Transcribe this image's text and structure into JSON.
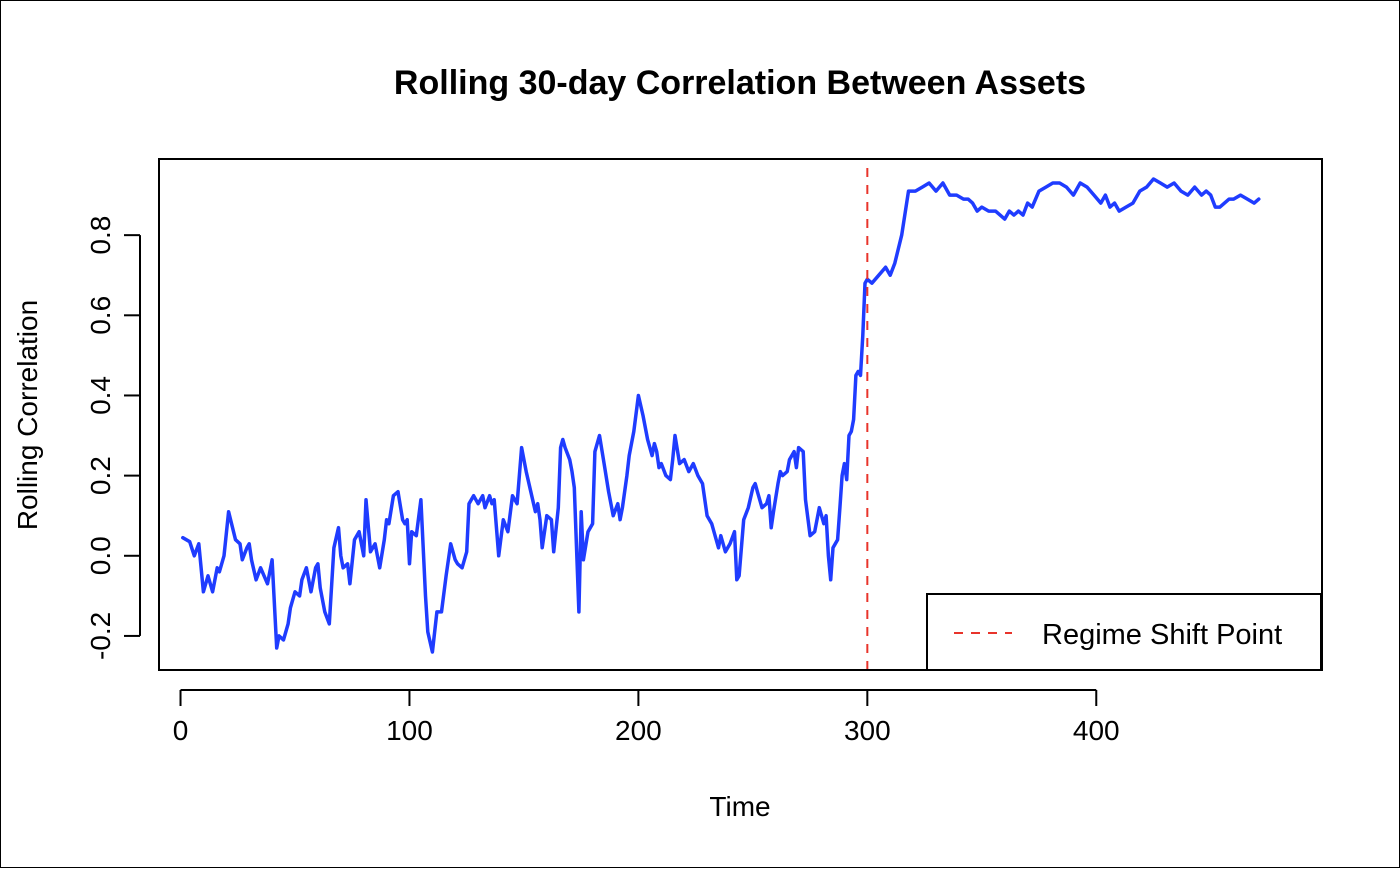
{
  "chart_data": {
    "type": "line",
    "title": "Rolling 30-day Correlation Between Assets",
    "xlabel": "Time",
    "ylabel": "Rolling Correlation",
    "xlim": [
      -9.4,
      498.6
    ],
    "ylim": [
      -0.285,
      0.99
    ],
    "x_ticks": [
      0,
      100,
      200,
      300,
      400
    ],
    "y_ticks": [
      -0.2,
      0.0,
      0.2,
      0.4,
      0.6,
      0.8
    ],
    "x_tick_labels": [
      "0",
      "100",
      "200",
      "300",
      "400"
    ],
    "y_tick_labels": [
      "-0.2",
      "0.0",
      "0.2",
      "0.4",
      "0.6",
      "0.8"
    ],
    "grid": false,
    "legend_position": "bottom-right",
    "colors": {
      "series": "#1f3cff",
      "regime_line": "#e8342b"
    },
    "series": [
      {
        "name": "Rolling Correlation",
        "x": [
          1,
          4,
          6,
          8,
          10,
          12,
          14,
          15,
          16,
          17,
          19,
          21,
          24,
          26,
          27,
          29,
          30,
          31,
          33,
          35,
          38,
          40,
          42,
          43,
          45,
          47,
          48,
          50,
          52,
          53,
          55,
          57,
          59,
          60,
          61,
          63,
          65,
          67,
          69,
          70,
          71,
          73,
          74,
          76,
          78,
          80,
          81,
          83,
          85,
          87,
          89,
          90,
          91,
          93,
          95,
          97,
          98,
          99,
          100,
          101,
          103,
          105,
          107,
          108,
          110,
          112,
          114,
          116,
          118,
          120,
          121,
          123,
          125,
          126,
          128,
          130,
          132,
          133,
          135,
          136,
          137,
          139,
          141,
          143,
          145,
          147,
          149,
          151,
          153,
          155,
          156,
          157,
          158,
          160,
          162,
          163,
          165,
          166,
          167,
          168,
          170,
          171,
          172,
          174,
          175,
          176,
          178,
          180,
          181,
          183,
          185,
          187,
          189,
          191,
          192,
          193,
          195,
          196,
          198,
          200,
          202,
          204,
          206,
          207,
          208,
          209,
          210,
          212,
          214,
          215,
          216,
          218,
          220,
          222,
          224,
          226,
          228,
          230,
          232,
          234,
          235,
          236,
          238,
          240,
          242,
          243,
          244,
          246,
          248,
          250,
          251,
          252,
          254,
          256,
          257,
          258,
          259,
          261,
          262,
          263,
          265,
          266,
          268,
          269,
          270,
          272,
          273,
          275,
          277,
          279,
          281,
          282,
          283,
          284,
          285,
          287,
          288,
          289,
          290,
          291,
          292,
          293,
          294,
          295,
          296,
          297,
          298,
          299,
          300,
          302,
          305,
          308,
          310,
          312,
          315,
          318,
          321,
          324,
          327,
          330,
          333,
          336,
          339,
          342,
          344,
          346,
          348,
          350,
          353,
          356,
          358,
          360,
          362,
          364,
          366,
          368,
          370,
          372,
          375,
          378,
          381,
          384,
          387,
          390,
          393,
          396,
          399,
          402,
          404,
          406,
          408,
          410,
          413,
          416,
          419,
          422,
          425,
          428,
          431,
          434,
          437,
          440,
          443,
          446,
          448,
          450,
          452,
          454,
          456,
          458,
          460,
          463,
          466,
          469,
          471
        ],
        "y": [
          0.045,
          0.035,
          0.0,
          0.03,
          -0.09,
          -0.05,
          -0.09,
          -0.06,
          -0.03,
          -0.04,
          0.0,
          0.11,
          0.04,
          0.03,
          -0.01,
          0.02,
          0.03,
          -0.01,
          -0.06,
          -0.03,
          -0.07,
          -0.01,
          -0.23,
          -0.2,
          -0.21,
          -0.17,
          -0.13,
          -0.09,
          -0.1,
          -0.06,
          -0.03,
          -0.09,
          -0.03,
          -0.02,
          -0.08,
          -0.14,
          -0.17,
          0.02,
          0.07,
          0.0,
          -0.03,
          -0.02,
          -0.07,
          0.04,
          0.06,
          0.0,
          0.14,
          0.01,
          0.03,
          -0.03,
          0.04,
          0.09,
          0.08,
          0.15,
          0.16,
          0.09,
          0.08,
          0.09,
          -0.02,
          0.06,
          0.05,
          0.14,
          -0.1,
          -0.19,
          -0.24,
          -0.14,
          -0.14,
          -0.05,
          0.03,
          -0.01,
          -0.02,
          -0.03,
          0.01,
          0.13,
          0.15,
          0.13,
          0.15,
          0.12,
          0.15,
          0.13,
          0.14,
          0.0,
          0.09,
          0.06,
          0.15,
          0.13,
          0.27,
          0.21,
          0.16,
          0.11,
          0.13,
          0.09,
          0.02,
          0.1,
          0.09,
          0.01,
          0.12,
          0.27,
          0.29,
          0.27,
          0.24,
          0.21,
          0.17,
          -0.14,
          0.11,
          -0.01,
          0.06,
          0.08,
          0.26,
          0.3,
          0.23,
          0.16,
          0.1,
          0.13,
          0.09,
          0.12,
          0.2,
          0.25,
          0.31,
          0.4,
          0.35,
          0.29,
          0.25,
          0.28,
          0.26,
          0.22,
          0.23,
          0.2,
          0.19,
          0.24,
          0.3,
          0.23,
          0.24,
          0.21,
          0.23,
          0.2,
          0.18,
          0.1,
          0.08,
          0.04,
          0.02,
          0.05,
          0.01,
          0.03,
          0.06,
          -0.06,
          -0.05,
          0.09,
          0.12,
          0.17,
          0.18,
          0.16,
          0.12,
          0.13,
          0.15,
          0.07,
          0.11,
          0.18,
          0.21,
          0.2,
          0.21,
          0.24,
          0.26,
          0.22,
          0.27,
          0.26,
          0.14,
          0.05,
          0.06,
          0.12,
          0.08,
          0.1,
          0.0,
          -0.06,
          0.02,
          0.04,
          0.12,
          0.2,
          0.23,
          0.19,
          0.3,
          0.31,
          0.34,
          0.45,
          0.46,
          0.45,
          0.55,
          0.68,
          0.69,
          0.68,
          0.7,
          0.72,
          0.7,
          0.73,
          0.8,
          0.91,
          0.91,
          0.92,
          0.93,
          0.91,
          0.93,
          0.9,
          0.9,
          0.89,
          0.89,
          0.88,
          0.86,
          0.87,
          0.86,
          0.86,
          0.85,
          0.84,
          0.86,
          0.85,
          0.86,
          0.85,
          0.88,
          0.87,
          0.91,
          0.92,
          0.93,
          0.93,
          0.92,
          0.9,
          0.93,
          0.92,
          0.9,
          0.88,
          0.9,
          0.87,
          0.88,
          0.86,
          0.87,
          0.88,
          0.91,
          0.92,
          0.94,
          0.93,
          0.92,
          0.93,
          0.91,
          0.9,
          0.92,
          0.9,
          0.91,
          0.9,
          0.87,
          0.87,
          0.88,
          0.89,
          0.89,
          0.9,
          0.89,
          0.88,
          0.89
        ]
      }
    ],
    "reference_lines": [
      {
        "name": "Regime Shift Point",
        "orientation": "vertical",
        "x": 300,
        "style": "dashed"
      }
    ],
    "legend": [
      {
        "label": "Regime Shift Point",
        "style": "dashed",
        "color": "#e8342b"
      }
    ]
  }
}
